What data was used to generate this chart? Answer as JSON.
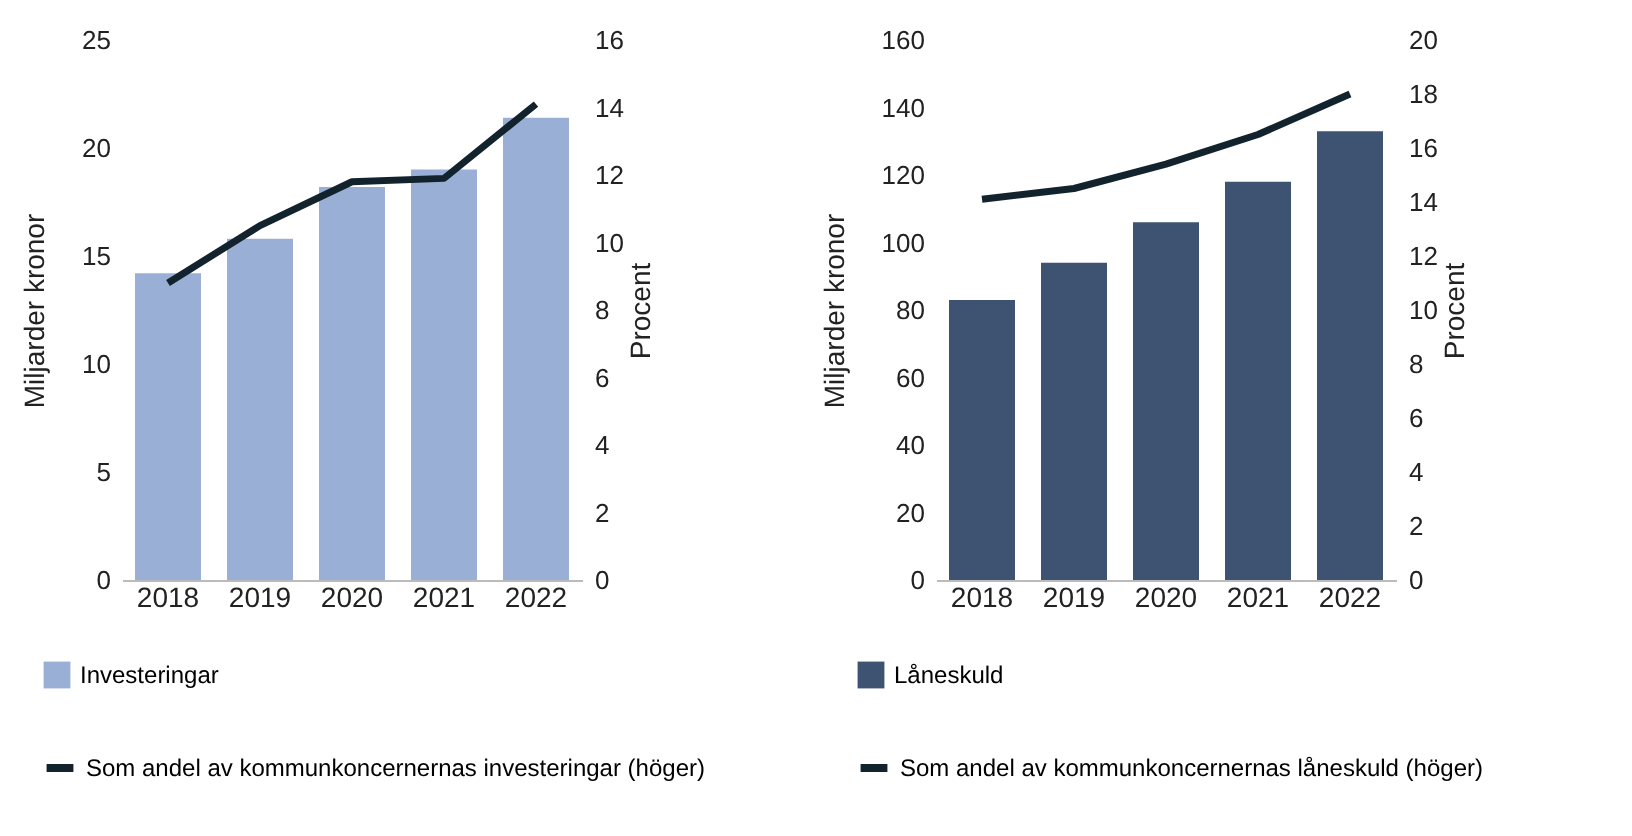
{
  "chart_data": [
    {
      "type": "bar",
      "categories": [
        "2018",
        "2019",
        "2020",
        "2021",
        "2022"
      ],
      "ylabel": "Miljarder kronor",
      "y2label": "Procent",
      "ylim": [
        0,
        25
      ],
      "yticks": [
        0,
        5,
        10,
        15,
        20,
        25
      ],
      "y2lim": [
        0,
        16
      ],
      "y2ticks": [
        0,
        2,
        4,
        6,
        8,
        10,
        12,
        14,
        16
      ],
      "grid": false,
      "legend": "bottom",
      "series": [
        {
          "name": "Investeringar",
          "color": "#9aafd6",
          "values": [
            14.2,
            15.8,
            18.2,
            19.0,
            21.4
          ]
        },
        {
          "name": "Som andel av kommunkoncernernas investeringar (höger)",
          "type": "line",
          "axis": "y2",
          "color": "#13232e",
          "values": [
            8.8,
            10.5,
            11.8,
            11.9,
            14.1
          ]
        }
      ]
    },
    {
      "type": "bar",
      "categories": [
        "2018",
        "2019",
        "2020",
        "2021",
        "2022"
      ],
      "ylabel": "Miljarder kronor",
      "y2label": "Procent",
      "ylim": [
        0,
        160
      ],
      "yticks": [
        0,
        20,
        40,
        60,
        80,
        100,
        120,
        140,
        160
      ],
      "y2lim": [
        0,
        20
      ],
      "y2ticks": [
        0,
        2,
        4,
        6,
        8,
        10,
        12,
        14,
        16,
        18,
        20
      ],
      "grid": false,
      "legend": "bottom",
      "series": [
        {
          "name": "Låneskuld",
          "color": "#3e5272",
          "values": [
            83,
            94,
            106,
            118,
            133
          ]
        },
        {
          "name": "Som andel av kommunkoncernernas låneskuld (höger)",
          "type": "line",
          "axis": "y2",
          "color": "#13232e",
          "values": [
            14.1,
            14.5,
            15.4,
            16.5,
            18.0
          ]
        }
      ]
    }
  ]
}
